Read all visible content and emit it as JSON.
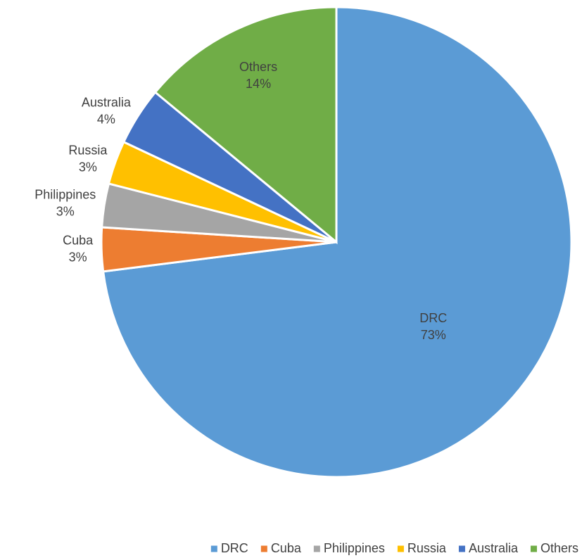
{
  "chart_data": {
    "type": "pie",
    "categories": [
      "DRC",
      "Cuba",
      "Philippines",
      "Russia",
      "Australia",
      "Others"
    ],
    "values": [
      73,
      3,
      3,
      3,
      4,
      14
    ],
    "value_labels": [
      "73%",
      "3%",
      "3%",
      "3%",
      "4%",
      "14%"
    ],
    "colors": [
      "#5b9bd5",
      "#ed7d31",
      "#a5a5a5",
      "#ffc000",
      "#4472c4",
      "#70ad47"
    ],
    "legend": "bottom"
  }
}
